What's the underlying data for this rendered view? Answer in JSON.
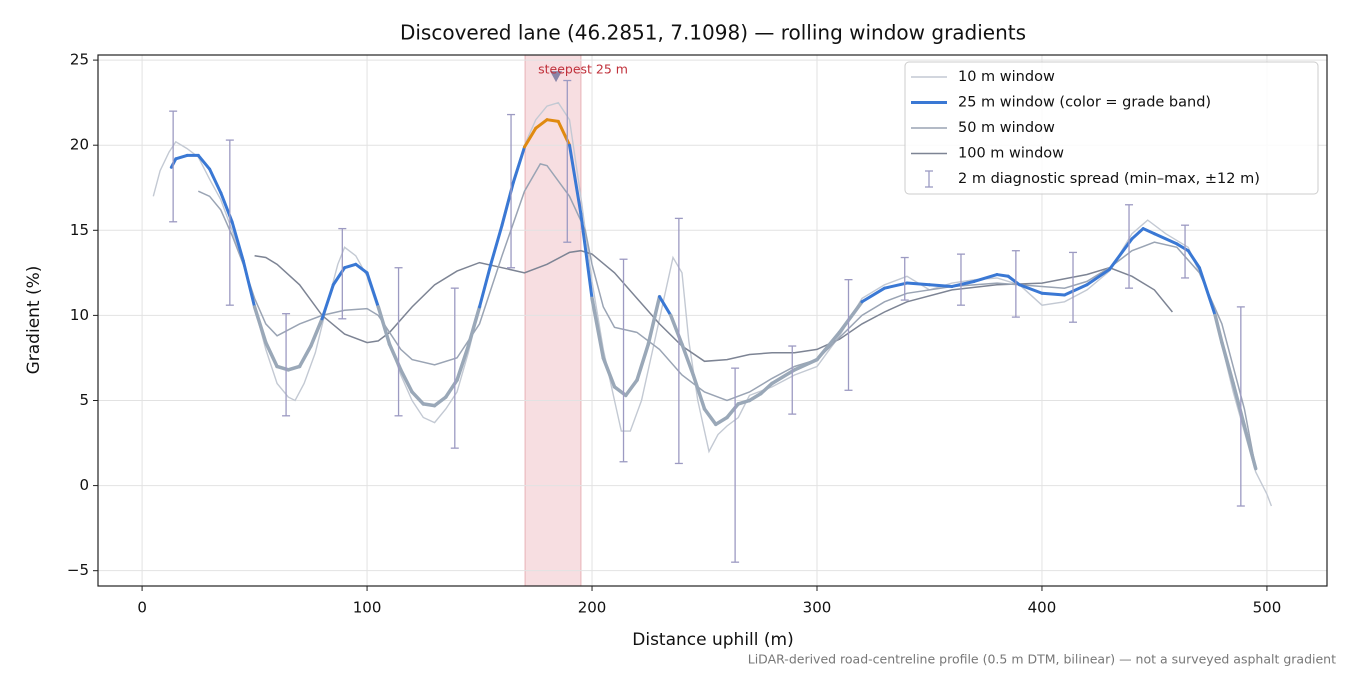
{
  "chart_data": {
    "type": "line",
    "title": "Discovered lane (46.2851, 7.1098) — rolling window gradients",
    "xlabel": "Distance uphill (m)",
    "ylabel": "Gradient (%)",
    "footnote": "LiDAR-derived road-centreline profile (0.5 m DTM, bilinear) — not a surveyed asphalt gradient",
    "xlim": [
      -19.6,
      526.7
    ],
    "ylim": [
      -5.9,
      25.3
    ],
    "xticks": [
      0,
      100,
      200,
      300,
      400,
      500
    ],
    "yticks": [
      {
        "value": -5,
        "label": "−5"
      },
      0,
      5,
      10,
      15,
      20,
      25
    ],
    "grid": true,
    "legend": "upper right",
    "series": [
      {
        "name": "10 m window",
        "color": "#c3c9d3",
        "x": [
          5,
          8,
          12,
          15,
          20,
          25,
          30,
          35,
          40,
          45,
          50,
          55,
          60,
          65,
          68,
          72,
          77,
          82,
          87,
          90,
          95,
          100,
          105,
          110,
          115,
          120,
          125,
          130,
          135,
          140,
          145,
          150,
          155,
          160,
          165,
          170,
          175,
          180,
          185,
          190,
          195,
          200,
          205,
          210,
          213,
          217,
          222,
          227,
          232,
          236,
          240,
          243,
          247,
          252,
          256,
          260,
          265,
          270,
          280,
          290,
          300,
          310,
          320,
          330,
          340,
          350,
          360,
          370,
          380,
          390,
          400,
          410,
          420,
          430,
          440,
          447,
          455,
          465,
          475,
          485,
          495,
          500,
          502
        ],
        "values": [
          17.0,
          18.5,
          19.6,
          20.2,
          19.8,
          19.3,
          18.0,
          16.8,
          15.0,
          13.0,
          10.5,
          8.0,
          6.0,
          5.2,
          5.0,
          6.0,
          7.8,
          10.5,
          13.0,
          14.0,
          13.5,
          12.3,
          10.3,
          8.4,
          6.5,
          5.0,
          4.0,
          3.7,
          4.5,
          5.5,
          7.8,
          10.5,
          12.8,
          15.5,
          18.0,
          20.0,
          21.5,
          22.3,
          22.5,
          21.5,
          17.0,
          12.0,
          8.0,
          5.0,
          3.2,
          3.2,
          5.0,
          8.0,
          11.0,
          13.4,
          12.5,
          8.5,
          5.0,
          2.0,
          3.0,
          3.5,
          4.0,
          5.3,
          5.8,
          6.5,
          7.0,
          8.8,
          11.0,
          11.8,
          12.3,
          11.5,
          11.9,
          12.1,
          12.2,
          11.8,
          10.6,
          10.8,
          11.5,
          12.6,
          14.8,
          15.6,
          14.8,
          14.0,
          11.0,
          5.5,
          0.8,
          -0.5,
          -1.2
        ]
      },
      {
        "name": "25 m window (color = grade band)",
        "color": "#3a78d4",
        "band_colors": [
          "#9aa8b8",
          "#3a78d4",
          "#e08a10"
        ],
        "band_breaks": [
          10,
          20
        ],
        "x": [
          13,
          15,
          20,
          25,
          30,
          35,
          40,
          45,
          50,
          55,
          60,
          65,
          70,
          75,
          80,
          85,
          90,
          95,
          100,
          105,
          110,
          115,
          120,
          125,
          130,
          135,
          140,
          145,
          150,
          155,
          160,
          165,
          170,
          175,
          180,
          185,
          190,
          195,
          200,
          205,
          210,
          215,
          220,
          225,
          230,
          235,
          240,
          245,
          250,
          255,
          260,
          265,
          270,
          275,
          280,
          290,
          300,
          310,
          320,
          330,
          340,
          350,
          360,
          370,
          380,
          385,
          390,
          400,
          410,
          420,
          430,
          440,
          445,
          450,
          460,
          465,
          470,
          477,
          480,
          485,
          490,
          495
        ],
        "values": [
          18.7,
          19.2,
          19.4,
          19.4,
          18.6,
          17.2,
          15.5,
          13.2,
          10.5,
          8.4,
          7.0,
          6.8,
          7.0,
          8.2,
          9.8,
          11.8,
          12.8,
          13.0,
          12.5,
          10.5,
          8.3,
          6.8,
          5.5,
          4.8,
          4.7,
          5.2,
          6.2,
          8.2,
          10.5,
          13.0,
          15.3,
          17.8,
          19.9,
          21.0,
          21.5,
          21.4,
          20.0,
          16.0,
          11.0,
          7.5,
          5.8,
          5.3,
          6.2,
          8.3,
          11.1,
          10.0,
          8.3,
          6.5,
          4.5,
          3.6,
          4.0,
          4.8,
          5.0,
          5.4,
          6.0,
          6.8,
          7.4,
          9.0,
          10.8,
          11.6,
          11.9,
          11.8,
          11.7,
          12.0,
          12.4,
          12.3,
          11.8,
          11.3,
          11.2,
          11.8,
          12.7,
          14.5,
          15.1,
          14.8,
          14.2,
          13.8,
          12.8,
          10.0,
          8.4,
          6.0,
          3.5,
          1.0
        ]
      },
      {
        "name": "50 m window",
        "color": "#9aa4b4",
        "x": [
          25,
          30,
          35,
          40,
          45,
          50,
          55,
          60,
          70,
          80,
          90,
          100,
          105,
          110,
          115,
          120,
          130,
          140,
          150,
          160,
          170,
          177,
          180,
          190,
          197,
          200,
          205,
          210,
          220,
          230,
          240,
          250,
          260,
          270,
          280,
          290,
          300,
          310,
          320,
          330,
          340,
          360,
          380,
          400,
          410,
          420,
          430,
          440,
          450,
          460,
          470,
          480,
          490,
          495
        ],
        "values": [
          17.3,
          17.0,
          16.2,
          14.7,
          13.0,
          11.0,
          9.5,
          8.8,
          9.5,
          10.0,
          10.3,
          10.4,
          10.0,
          9.0,
          8.0,
          7.4,
          7.1,
          7.5,
          9.5,
          13.5,
          17.3,
          18.9,
          18.8,
          17.0,
          15.0,
          13.0,
          10.5,
          9.3,
          9.0,
          8.0,
          6.5,
          5.5,
          5.0,
          5.5,
          6.3,
          7.0,
          7.4,
          8.7,
          10.0,
          10.8,
          11.3,
          11.7,
          11.9,
          11.7,
          11.6,
          12.0,
          12.8,
          13.8,
          14.3,
          14.0,
          12.5,
          9.5,
          4.5,
          1.0
        ]
      },
      {
        "name": "100 m window",
        "color": "#7d8494",
        "x": [
          50,
          55,
          60,
          70,
          80,
          90,
          100,
          105,
          110,
          120,
          130,
          140,
          150,
          160,
          170,
          180,
          190,
          195,
          200,
          210,
          220,
          230,
          240,
          250,
          260,
          270,
          280,
          290,
          300,
          310,
          320,
          330,
          340,
          360,
          380,
          400,
          420,
          430,
          440,
          450,
          458
        ],
        "values": [
          13.5,
          13.4,
          13.0,
          11.8,
          10.0,
          8.9,
          8.4,
          8.5,
          9.0,
          10.5,
          11.8,
          12.6,
          13.1,
          12.8,
          12.5,
          13.0,
          13.7,
          13.8,
          13.6,
          12.5,
          11.0,
          9.5,
          8.2,
          7.3,
          7.4,
          7.7,
          7.8,
          7.8,
          8.0,
          8.6,
          9.5,
          10.2,
          10.8,
          11.5,
          11.8,
          11.9,
          12.4,
          12.8,
          12.3,
          11.5,
          10.2
        ]
      }
    ],
    "spread": {
      "name": "2 m diagnostic spread (min–max, ±12 m)",
      "color": "#9c9ac2",
      "x": [
        13.8,
        39,
        64,
        89,
        114,
        139,
        164,
        189,
        214,
        238.6,
        263.6,
        289,
        314,
        339,
        364,
        388.4,
        413.8,
        438.7,
        463.6,
        488.4
      ],
      "low": [
        15.5,
        10.6,
        4.1,
        9.8,
        4.1,
        2.2,
        12.8,
        14.3,
        1.4,
        1.3,
        -4.5,
        4.2,
        5.6,
        10.9,
        10.6,
        9.9,
        9.6,
        11.6,
        12.2,
        -1.2
      ],
      "high": [
        22.0,
        20.3,
        10.1,
        15.1,
        12.8,
        11.6,
        21.8,
        23.8,
        13.3,
        15.7,
        6.9,
        8.2,
        12.1,
        13.4,
        13.6,
        13.8,
        13.7,
        16.5,
        15.3,
        10.5
      ]
    },
    "steepest": {
      "label": "steepest 25 m",
      "x0": 170.2,
      "x1": 195.1,
      "marker_x": 184,
      "marker_y": 24,
      "color": "#c0303a",
      "span_color": "#e8a0a8",
      "marker_color": "#8a86a8"
    }
  }
}
